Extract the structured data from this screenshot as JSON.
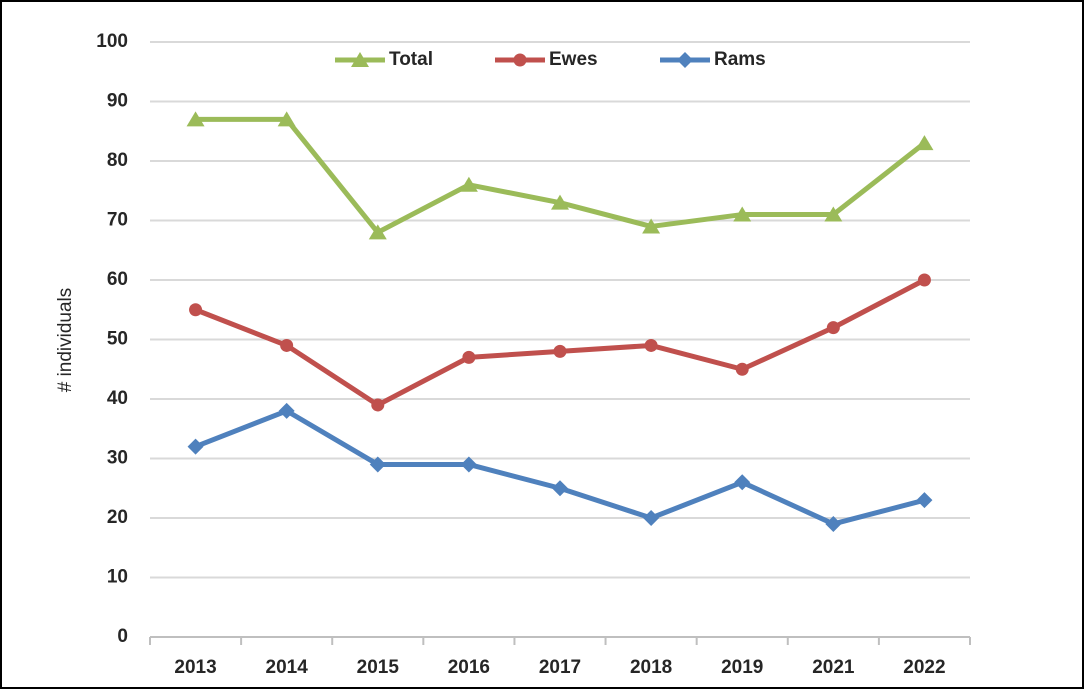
{
  "chart_data": {
    "type": "line",
    "y_label": "# individuals",
    "categories": [
      "2013",
      "2014",
      "2015",
      "2016",
      "2017",
      "2018",
      "2019",
      "2021",
      "2022"
    ],
    "series": [
      {
        "name": "Total",
        "color": "#9bbb59",
        "marker": "triangle",
        "values": [
          87,
          87,
          68,
          76,
          73,
          69,
          71,
          71,
          83
        ]
      },
      {
        "name": "Ewes",
        "color": "#c0504d",
        "marker": "circle",
        "values": [
          55,
          49,
          39,
          47,
          48,
          49,
          45,
          52,
          60
        ]
      },
      {
        "name": "Rams",
        "color": "#4f81bd",
        "marker": "diamond",
        "values": [
          32,
          38,
          29,
          29,
          25,
          20,
          26,
          19,
          23
        ]
      }
    ],
    "ylim": [
      0,
      100
    ],
    "yticks": [
      0,
      10,
      20,
      30,
      40,
      50,
      60,
      70,
      80,
      90,
      100
    ],
    "grid": true,
    "legend": "top"
  }
}
